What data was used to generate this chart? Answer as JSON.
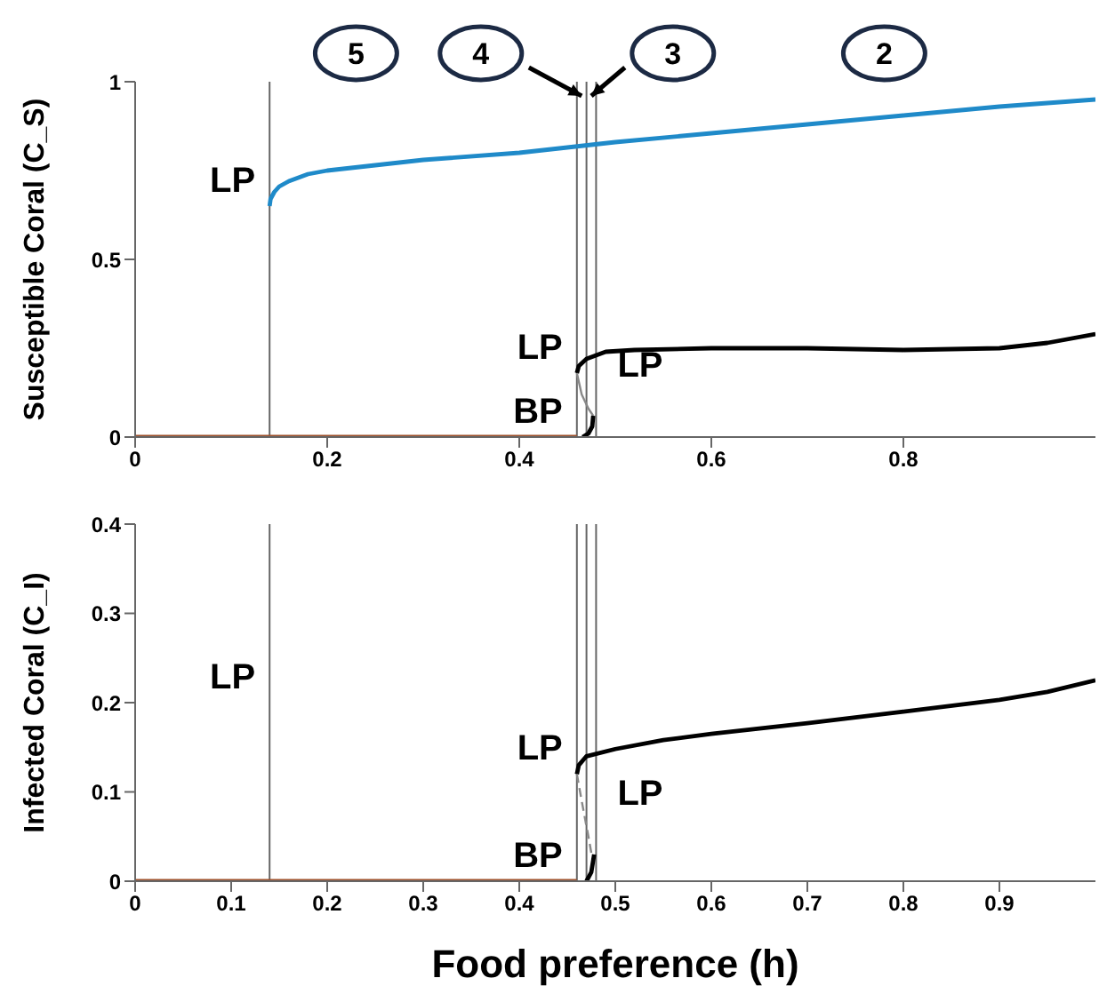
{
  "chart_data": [
    {
      "type": "line",
      "ylabel": "Susceptible Coral (C_S)",
      "xlim": [
        0,
        1
      ],
      "xticks": [
        0,
        0.2,
        0.4,
        0.6,
        0.8
      ],
      "ylim": [
        0,
        1
      ],
      "yticks": [
        0,
        0.5,
        1
      ],
      "grid": false,
      "legend": false,
      "marker": "none",
      "series": [
        {
          "color": "#a0522d",
          "x": [
            0,
            0.46
          ],
          "values": [
            0,
            0
          ]
        },
        {
          "color": "#1f8ac9",
          "x": [
            0.14,
            0.141,
            0.145,
            0.15,
            0.16,
            0.18,
            0.2,
            0.25,
            0.3,
            0.4,
            0.5,
            0.6,
            0.7,
            0.8,
            0.9,
            1
          ],
          "values": [
            0.65,
            0.67,
            0.69,
            0.705,
            0.72,
            0.74,
            0.75,
            0.765,
            0.78,
            0.8,
            0.83,
            0.855,
            0.88,
            0.905,
            0.93,
            0.95
          ]
        },
        {
          "color": "#000000",
          "x": [
            0.46,
            0.462,
            0.47,
            0.49,
            0.52,
            0.6,
            0.7,
            0.8,
            0.9,
            0.95,
            1
          ],
          "values": [
            0.18,
            0.2,
            0.22,
            0.24,
            0.245,
            0.25,
            0.25,
            0.245,
            0.25,
            0.265,
            0.29
          ]
        },
        {
          "color": "#888888",
          "line_style": "solid",
          "x": [
            0.46,
            0.465,
            0.472,
            0.477
          ],
          "values": [
            0.18,
            0.12,
            0.08,
            0.06
          ]
        },
        {
          "color": "#000000",
          "x": [
            0.466,
            0.472,
            0.476,
            0.477
          ],
          "values": [
            0,
            0.01,
            0.03,
            0.06
          ]
        }
      ],
      "ref_lines": [
        {
          "axis": "x",
          "value": 0.14,
          "color": "#666666"
        },
        {
          "axis": "x",
          "value": 0.46,
          "color": "#666666"
        },
        {
          "axis": "x",
          "value": 0.47,
          "color": "#666666"
        },
        {
          "axis": "x",
          "value": 0.48,
          "color": "#666666"
        }
      ],
      "annotations": [
        "5",
        "4",
        "3",
        "2",
        {
          "text": "LP",
          "x": 0.14,
          "y": 0.65
        },
        {
          "text": "LP",
          "x": 0.46,
          "y": 0.18
        },
        {
          "text": "LP",
          "x": 0.48,
          "y": 0.03
        },
        {
          "text": "BP",
          "x": 0.46,
          "y": 0
        }
      ]
    },
    {
      "type": "line",
      "xlabel": "Food preference (h)",
      "ylabel": "Infected Coral (C_I)",
      "xlim": [
        0,
        1
      ],
      "xticks": [
        0,
        0.1,
        0.2,
        0.3,
        0.4,
        0.5,
        0.6,
        0.7,
        0.8,
        0.9
      ],
      "ylim": [
        0,
        0.4
      ],
      "yticks": [
        0,
        0.1,
        0.2,
        0.3,
        0.4
      ],
      "grid": false,
      "legend": false,
      "marker": "none",
      "series": [
        {
          "color": "#a0522d",
          "x": [
            0,
            0.46
          ],
          "values": [
            0,
            0
          ]
        },
        {
          "color": "#000000",
          "x": [
            0.46,
            0.462,
            0.47,
            0.5,
            0.55,
            0.6,
            0.7,
            0.8,
            0.9,
            0.95,
            1
          ],
          "values": [
            0.12,
            0.13,
            0.14,
            0.148,
            0.158,
            0.165,
            0.177,
            0.19,
            0.203,
            0.212,
            0.225
          ]
        },
        {
          "color": "#888888",
          "line_style": "dashed",
          "x": [
            0.46,
            0.465,
            0.472,
            0.477
          ],
          "values": [
            0.12,
            0.09,
            0.05,
            0.02
          ]
        },
        {
          "color": "#000000",
          "x": [
            0.47,
            0.475,
            0.478
          ],
          "values": [
            0,
            0.01,
            0.03
          ]
        }
      ],
      "ref_lines": [
        {
          "axis": "x",
          "value": 0.14,
          "color": "#666666"
        },
        {
          "axis": "x",
          "value": 0.46,
          "color": "#666666"
        },
        {
          "axis": "x",
          "value": 0.47,
          "color": "#666666"
        },
        {
          "axis": "x",
          "value": 0.48,
          "color": "#666666"
        }
      ],
      "annotations": [
        {
          "text": "LP",
          "x": 0.14,
          "y": 0.2
        },
        {
          "text": "LP",
          "x": 0.46,
          "y": 0.12
        },
        {
          "text": "LP",
          "x": 0.48,
          "y": 0.03
        },
        {
          "text": "BP",
          "x": 0.46,
          "y": 0
        }
      ]
    }
  ]
}
